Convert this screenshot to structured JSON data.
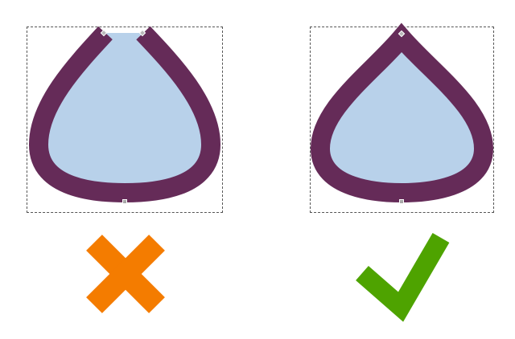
{
  "figure": {
    "colors": {
      "background": "#ffffff",
      "stroke": "#652b58",
      "fill": "#b8d1ea",
      "cross": "#f47c00",
      "check": "#4ea300",
      "bbox": "#555555",
      "node": "#a9a9a9"
    },
    "panels": [
      {
        "id": "wrong",
        "verdict_icon": "cross-icon",
        "path_closed": false
      },
      {
        "id": "right",
        "verdict_icon": "checkmark-icon",
        "path_closed": true
      }
    ]
  }
}
